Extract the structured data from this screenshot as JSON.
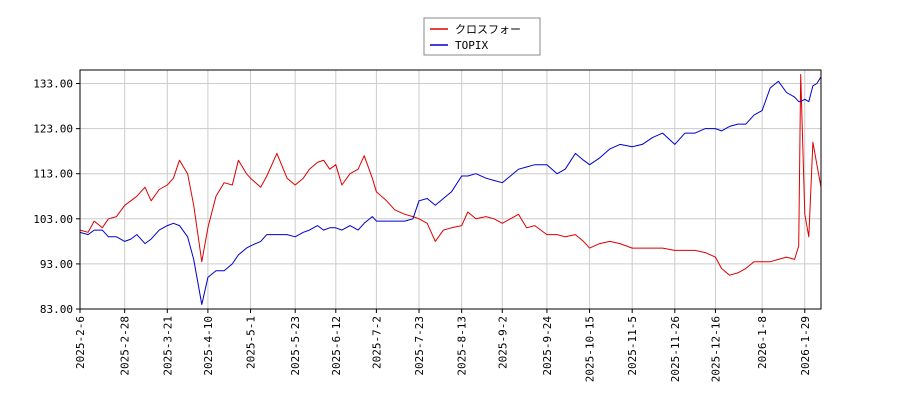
{
  "chart_data": {
    "type": "line",
    "title": "",
    "xlabel": "",
    "ylabel": "",
    "ylim": [
      83,
      136
    ],
    "y_ticks": [
      83,
      93,
      103,
      113,
      123,
      133
    ],
    "y_tick_labels": [
      "83.00",
      "93.00",
      "103.00",
      "113.00",
      "123.00",
      "133.00"
    ],
    "x_ticks": [
      "2025-2-6",
      "2025-2-28",
      "2025-3-21",
      "2025-4-10",
      "2025-5-1",
      "2025-5-23",
      "2025-6-12",
      "2025-7-2",
      "2025-7-23",
      "2025-8-13",
      "2025-9-2",
      "2025-9-24",
      "2025-10-15",
      "2025-11-5",
      "2025-11-26",
      "2025-12-16",
      "2026-1-8",
      "2026-1-29"
    ],
    "x_end": "2026-2-6",
    "grid": true,
    "legend_position": "top-center",
    "series": [
      {
        "name": "クロスフォー",
        "color": "#dd0000",
        "points": [
          [
            "2025-2-6",
            100.5
          ],
          [
            "2025-2-10",
            100
          ],
          [
            "2025-2-13",
            102.5
          ],
          [
            "2025-2-17",
            101
          ],
          [
            "2025-2-20",
            103
          ],
          [
            "2025-2-24",
            103.5
          ],
          [
            "2025-2-28",
            106
          ],
          [
            "2025-3-3",
            107
          ],
          [
            "2025-3-6",
            108
          ],
          [
            "2025-3-10",
            110
          ],
          [
            "2025-3-13",
            107
          ],
          [
            "2025-3-17",
            109.5
          ],
          [
            "2025-3-21",
            110.5
          ],
          [
            "2025-3-24",
            112
          ],
          [
            "2025-3-27",
            116
          ],
          [
            "2025-3-31",
            113
          ],
          [
            "2025-4-3",
            106
          ],
          [
            "2025-4-7",
            93.5
          ],
          [
            "2025-4-10",
            101
          ],
          [
            "2025-4-14",
            108
          ],
          [
            "2025-4-18",
            111
          ],
          [
            "2025-4-22",
            110.5
          ],
          [
            "2025-4-25",
            116
          ],
          [
            "2025-4-29",
            113
          ],
          [
            "2025-5-1",
            112
          ],
          [
            "2025-5-6",
            110
          ],
          [
            "2025-5-9",
            112.5
          ],
          [
            "2025-5-14",
            117.5
          ],
          [
            "2025-5-19",
            112
          ],
          [
            "2025-5-23",
            110.5
          ],
          [
            "2025-5-27",
            112
          ],
          [
            "2025-5-30",
            114
          ],
          [
            "2025-6-3",
            115.5
          ],
          [
            "2025-6-6",
            116
          ],
          [
            "2025-6-9",
            114
          ],
          [
            "2025-6-12",
            115
          ],
          [
            "2025-6-15",
            110.5
          ],
          [
            "2025-6-19",
            113
          ],
          [
            "2025-6-23",
            114
          ],
          [
            "2025-6-26",
            117
          ],
          [
            "2025-6-30",
            112
          ],
          [
            "2025-7-2",
            109
          ],
          [
            "2025-7-7",
            107
          ],
          [
            "2025-7-11",
            105
          ],
          [
            "2025-7-16",
            104
          ],
          [
            "2025-7-20",
            103.5
          ],
          [
            "2025-7-23",
            103
          ],
          [
            "2025-7-27",
            102
          ],
          [
            "2025-7-31",
            98
          ],
          [
            "2025-8-4",
            100.5
          ],
          [
            "2025-8-8",
            101
          ],
          [
            "2025-8-13",
            101.5
          ],
          [
            "2025-8-16",
            104.5
          ],
          [
            "2025-8-20",
            103
          ],
          [
            "2025-8-25",
            103.5
          ],
          [
            "2025-8-29",
            103
          ],
          [
            "2025-9-2",
            102
          ],
          [
            "2025-9-6",
            103
          ],
          [
            "2025-9-10",
            104
          ],
          [
            "2025-9-14",
            101
          ],
          [
            "2025-9-18",
            101.5
          ],
          [
            "2025-9-24",
            99.5
          ],
          [
            "2025-9-29",
            99.5
          ],
          [
            "2025-10-3",
            99
          ],
          [
            "2025-10-8",
            99.5
          ],
          [
            "2025-10-12",
            98
          ],
          [
            "2025-10-15",
            96.5
          ],
          [
            "2025-10-20",
            97.5
          ],
          [
            "2025-10-25",
            98
          ],
          [
            "2025-10-30",
            97.5
          ],
          [
            "2025-11-5",
            96.5
          ],
          [
            "2025-11-10",
            96.5
          ],
          [
            "2025-11-15",
            96.5
          ],
          [
            "2025-11-20",
            96.5
          ],
          [
            "2025-11-26",
            96
          ],
          [
            "2025-12-1",
            96
          ],
          [
            "2025-12-6",
            96
          ],
          [
            "2025-12-11",
            95.5
          ],
          [
            "2025-12-16",
            94.5
          ],
          [
            "2025-12-19",
            92
          ],
          [
            "2025-12-23",
            90.5
          ],
          [
            "2025-12-27",
            91
          ],
          [
            "2025-12-31",
            92
          ],
          [
            "2026-1-4",
            93.5
          ],
          [
            "2026-1-8",
            93.5
          ],
          [
            "2026-1-12",
            93.5
          ],
          [
            "2026-1-16",
            94
          ],
          [
            "2026-1-20",
            94.5
          ],
          [
            "2026-1-24",
            94
          ],
          [
            "2026-1-26",
            97
          ],
          [
            "2026-1-27",
            135
          ],
          [
            "2026-1-29",
            104
          ],
          [
            "2026-1-31",
            99
          ],
          [
            "2026-2-2",
            120
          ],
          [
            "2026-2-4",
            115
          ],
          [
            "2026-2-6",
            110
          ]
        ]
      },
      {
        "name": "TOPIX",
        "color": "#0000cc",
        "points": [
          [
            "2025-2-6",
            100
          ],
          [
            "2025-2-10",
            99.5
          ],
          [
            "2025-2-13",
            100.5
          ],
          [
            "2025-2-17",
            100.5
          ],
          [
            "2025-2-20",
            99
          ],
          [
            "2025-2-24",
            99
          ],
          [
            "2025-2-28",
            98
          ],
          [
            "2025-3-3",
            98.5
          ],
          [
            "2025-3-6",
            99.5
          ],
          [
            "2025-3-10",
            97.5
          ],
          [
            "2025-3-13",
            98.5
          ],
          [
            "2025-3-17",
            100.5
          ],
          [
            "2025-3-21",
            101.5
          ],
          [
            "2025-3-24",
            102
          ],
          [
            "2025-3-27",
            101.5
          ],
          [
            "2025-3-31",
            99
          ],
          [
            "2025-4-3",
            94
          ],
          [
            "2025-4-7",
            84
          ],
          [
            "2025-4-10",
            90
          ],
          [
            "2025-4-14",
            91.5
          ],
          [
            "2025-4-18",
            91.5
          ],
          [
            "2025-4-22",
            93
          ],
          [
            "2025-4-25",
            95
          ],
          [
            "2025-4-29",
            96.5
          ],
          [
            "2025-5-1",
            97
          ],
          [
            "2025-5-6",
            98
          ],
          [
            "2025-5-9",
            99.5
          ],
          [
            "2025-5-14",
            99.5
          ],
          [
            "2025-5-19",
            99.5
          ],
          [
            "2025-5-23",
            99
          ],
          [
            "2025-5-27",
            100
          ],
          [
            "2025-5-30",
            100.5
          ],
          [
            "2025-6-3",
            101.5
          ],
          [
            "2025-6-6",
            100.5
          ],
          [
            "2025-6-9",
            101
          ],
          [
            "2025-6-12",
            101
          ],
          [
            "2025-6-15",
            100.5
          ],
          [
            "2025-6-19",
            101.5
          ],
          [
            "2025-6-23",
            100.5
          ],
          [
            "2025-6-26",
            102
          ],
          [
            "2025-6-30",
            103.5
          ],
          [
            "2025-7-2",
            102.5
          ],
          [
            "2025-7-7",
            102.5
          ],
          [
            "2025-7-11",
            102.5
          ],
          [
            "2025-7-16",
            102.5
          ],
          [
            "2025-7-20",
            103
          ],
          [
            "2025-7-23",
            107
          ],
          [
            "2025-7-27",
            107.5
          ],
          [
            "2025-7-31",
            106
          ],
          [
            "2025-8-4",
            107.5
          ],
          [
            "2025-8-8",
            109
          ],
          [
            "2025-8-13",
            112.5
          ],
          [
            "2025-8-16",
            112.5
          ],
          [
            "2025-8-20",
            113
          ],
          [
            "2025-8-25",
            112
          ],
          [
            "2025-8-29",
            111.5
          ],
          [
            "2025-9-2",
            111
          ],
          [
            "2025-9-6",
            112.5
          ],
          [
            "2025-9-10",
            114
          ],
          [
            "2025-9-14",
            114.5
          ],
          [
            "2025-9-18",
            115
          ],
          [
            "2025-9-24",
            115
          ],
          [
            "2025-9-29",
            113
          ],
          [
            "2025-10-3",
            114
          ],
          [
            "2025-10-8",
            117.5
          ],
          [
            "2025-10-12",
            116
          ],
          [
            "2025-10-15",
            115
          ],
          [
            "2025-10-20",
            116.5
          ],
          [
            "2025-10-25",
            118.5
          ],
          [
            "2025-10-30",
            119.5
          ],
          [
            "2025-11-5",
            119
          ],
          [
            "2025-11-10",
            119.5
          ],
          [
            "2025-11-15",
            121
          ],
          [
            "2025-11-20",
            122
          ],
          [
            "2025-11-26",
            119.5
          ],
          [
            "2025-12-1",
            122
          ],
          [
            "2025-12-6",
            122
          ],
          [
            "2025-12-11",
            123
          ],
          [
            "2025-12-16",
            123
          ],
          [
            "2025-12-19",
            122.5
          ],
          [
            "2025-12-23",
            123.5
          ],
          [
            "2025-12-27",
            124
          ],
          [
            "2025-12-31",
            124
          ],
          [
            "2026-1-4",
            126
          ],
          [
            "2026-1-8",
            127
          ],
          [
            "2026-1-12",
            132
          ],
          [
            "2026-1-16",
            133.5
          ],
          [
            "2026-1-20",
            131
          ],
          [
            "2026-1-24",
            130
          ],
          [
            "2026-1-26",
            129
          ],
          [
            "2026-1-27",
            129
          ],
          [
            "2026-1-29",
            129.5
          ],
          [
            "2026-1-31",
            129
          ],
          [
            "2026-2-2",
            132.5
          ],
          [
            "2026-2-4",
            133
          ],
          [
            "2026-2-6",
            134.5
          ]
        ]
      }
    ]
  }
}
